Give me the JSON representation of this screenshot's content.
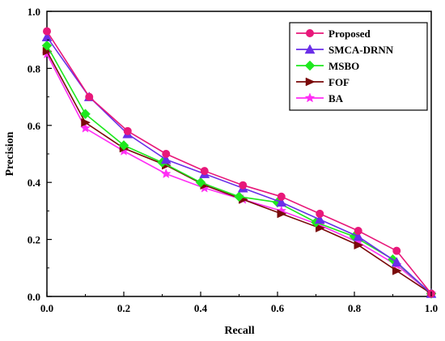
{
  "chart_data": {
    "type": "line",
    "title": "",
    "xlabel": "Recall",
    "ylabel": "Precision",
    "xlim": [
      0,
      1
    ],
    "ylim": [
      0,
      1
    ],
    "x_ticks": [
      "0.0",
      "0.2",
      "0.4",
      "0.6",
      "0.8",
      "1.0"
    ],
    "y_ticks": [
      "0.0",
      "0.2",
      "0.4",
      "0.6",
      "0.8",
      "1.0"
    ],
    "legend_position": "top-right",
    "grid": false,
    "series": [
      {
        "name": "Proposed",
        "color": "#e8187a",
        "marker": "circle",
        "x": [
          0.0,
          0.11,
          0.21,
          0.31,
          0.41,
          0.51,
          0.61,
          0.71,
          0.81,
          0.91,
          1.0
        ],
        "y": [
          0.93,
          0.7,
          0.58,
          0.5,
          0.44,
          0.39,
          0.35,
          0.29,
          0.23,
          0.16,
          0.01
        ]
      },
      {
        "name": "SMCA-DRNN",
        "color": "#6a2ee8",
        "marker": "triangle",
        "x": [
          0.0,
          0.11,
          0.21,
          0.31,
          0.41,
          0.51,
          0.61,
          0.71,
          0.81,
          0.91,
          1.0
        ],
        "y": [
          0.91,
          0.7,
          0.57,
          0.48,
          0.43,
          0.38,
          0.33,
          0.27,
          0.21,
          0.12,
          0.01
        ]
      },
      {
        "name": "MSBO",
        "color": "#1ee81e",
        "marker": "diamond",
        "x": [
          0.0,
          0.1,
          0.2,
          0.3,
          0.4,
          0.5,
          0.6,
          0.7,
          0.8,
          0.9,
          1.0
        ],
        "y": [
          0.88,
          0.64,
          0.53,
          0.47,
          0.4,
          0.35,
          0.33,
          0.26,
          0.21,
          0.13,
          0.01
        ]
      },
      {
        "name": "FOF",
        "color": "#7a0a0a",
        "marker": "triangle-right",
        "x": [
          0.0,
          0.1,
          0.2,
          0.31,
          0.41,
          0.51,
          0.61,
          0.71,
          0.81,
          0.91,
          1.0
        ],
        "y": [
          0.86,
          0.61,
          0.52,
          0.46,
          0.39,
          0.34,
          0.29,
          0.24,
          0.18,
          0.09,
          0.01
        ]
      },
      {
        "name": "BA",
        "color": "#ff2df5",
        "marker": "star",
        "x": [
          0.0,
          0.1,
          0.2,
          0.31,
          0.41,
          0.51,
          0.61,
          0.71,
          0.81,
          0.91,
          1.0
        ],
        "y": [
          0.85,
          0.59,
          0.51,
          0.43,
          0.38,
          0.34,
          0.3,
          0.25,
          0.19,
          0.11,
          0.01
        ]
      }
    ]
  }
}
